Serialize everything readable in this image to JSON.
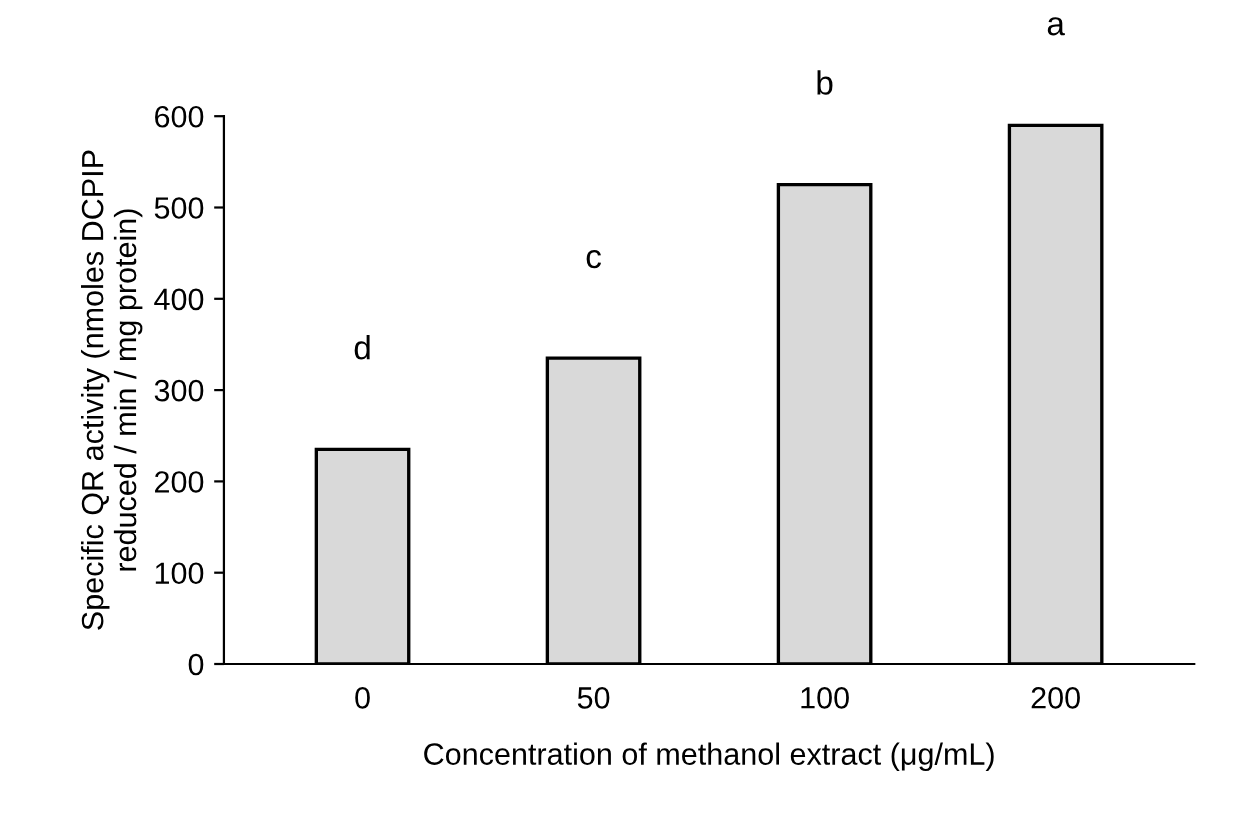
{
  "chart_data": {
    "type": "bar",
    "xlabel": "Concentration of methanol extract (μg/mL)",
    "ylabel": "Specific QR activity (nmoles DCPIP\nreduced / min / mg protein)",
    "categories": [
      "0",
      "50",
      "100",
      "200"
    ],
    "series": [
      {
        "color": "#d9d9d9",
        "values": [
          235,
          335,
          525,
          590
        ],
        "value_labels": [
          "d",
          "c",
          "b",
          "a"
        ]
      }
    ],
    "ylim": [
      0,
      600
    ],
    "yticks": [
      0,
      100,
      200,
      300,
      400,
      500,
      600
    ],
    "grid": false,
    "legend": false
  }
}
